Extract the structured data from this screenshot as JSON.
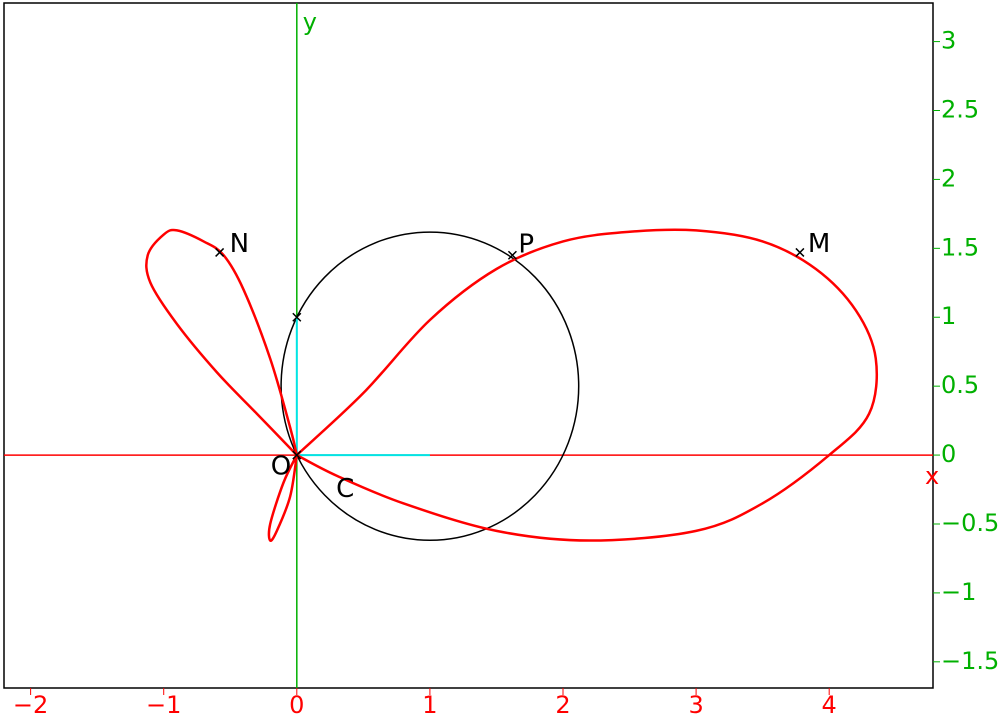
{
  "chart_data": {
    "type": "plot",
    "x_label": "x",
    "y_label": "y",
    "xlim": [
      -2.2,
      4.78
    ],
    "ylim": [
      -1.69,
      3.28
    ],
    "xticks": [
      {
        "value": -2,
        "label": "−2"
      },
      {
        "value": -1,
        "label": "−1"
      },
      0,
      1,
      2,
      3,
      4
    ],
    "yticks": [
      {
        "value": -1.5,
        "label": "−1.5"
      },
      {
        "value": -1,
        "label": "−1"
      },
      {
        "value": -0.5,
        "label": "−0.5"
      },
      0,
      0.5,
      1,
      1.5,
      2,
      2.5,
      3
    ],
    "x_axis_color": "#ff0000",
    "y_axis_color": "#00b000",
    "curves": [
      {
        "color": "#ff0000",
        "x": [
          0,
          0.5,
          1,
          1.5,
          2,
          2.5,
          3,
          3.5,
          3.9,
          4.2,
          4.35,
          4.3,
          4,
          3.5,
          3,
          2.2,
          1.5,
          0.8,
          0.3,
          0
        ],
        "y": [
          0,
          0.45,
          0.98,
          1.35,
          1.55,
          1.62,
          1.63,
          1.55,
          1.35,
          1.05,
          0.7,
          0.3,
          0,
          -0.35,
          -0.55,
          -0.62,
          -0.55,
          -0.35,
          -0.15,
          0
        ]
      },
      {
        "color": "#ff0000",
        "x": [
          0,
          -0.05,
          -0.15,
          -0.2,
          -0.2,
          -0.1,
          0
        ],
        "y": [
          0,
          -0.3,
          -0.55,
          -0.62,
          -0.5,
          -0.2,
          0
        ]
      },
      {
        "color": "#ff0000",
        "x": [
          0,
          -0.3,
          -0.6,
          -0.9,
          -1.1,
          -1.12,
          -1.0,
          -0.9,
          -0.7,
          -0.55,
          -0.4,
          -0.2,
          -0.05,
          0
        ],
        "y": [
          0,
          0.3,
          0.6,
          0.95,
          1.25,
          1.45,
          1.6,
          1.63,
          1.55,
          1.45,
          1.2,
          0.7,
          0.2,
          0
        ]
      }
    ],
    "circle": {
      "cx": 1,
      "cy": 0.5,
      "r": 1.118,
      "color": "#000000"
    },
    "segments": [
      {
        "color": "#00e5e5",
        "x": [
          0,
          0
        ],
        "y": [
          0,
          1
        ]
      },
      {
        "color": "#00e5e5",
        "x": [
          0,
          1
        ],
        "y": [
          0,
          0
        ]
      }
    ],
    "points": [
      {
        "label": "O",
        "x": 0,
        "y": 0
      },
      {
        "label": "C",
        "x": 0.22,
        "y": -0.12
      },
      {
        "label": "N",
        "x": -0.58,
        "y": 1.47
      },
      {
        "label": "P",
        "x": 1.62,
        "y": 1.45
      },
      {
        "label": "M",
        "x": 3.78,
        "y": 1.47
      }
    ],
    "markers": [
      {
        "x": 0,
        "y": 1
      }
    ]
  }
}
